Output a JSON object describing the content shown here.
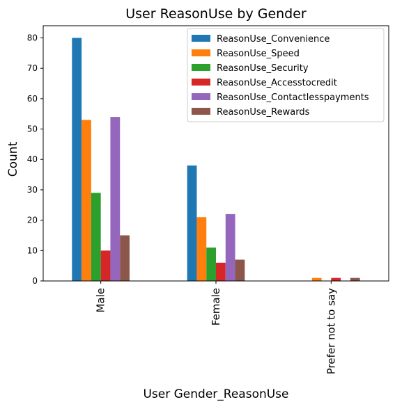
{
  "chart_data": {
    "type": "bar",
    "title": "User ReasonUse by Gender",
    "xlabel": "User Gender_ReasonUse",
    "ylabel": "Count",
    "categories": [
      "Male",
      "Female",
      "Prefer not to say"
    ],
    "ylim": [
      0,
      84
    ],
    "yticks": [
      0,
      10,
      20,
      30,
      40,
      50,
      60,
      70,
      80
    ],
    "grid": false,
    "legend_position": "top-right",
    "series": [
      {
        "name": "ReasonUse_Convenience",
        "color": "#1f77b4",
        "values": [
          80,
          38,
          0
        ]
      },
      {
        "name": "ReasonUse_Speed",
        "color": "#ff7f0e",
        "values": [
          53,
          21,
          1
        ]
      },
      {
        "name": "ReasonUse_Security",
        "color": "#2ca02c",
        "values": [
          29,
          11,
          0
        ]
      },
      {
        "name": "ReasonUse_Accesstocredit",
        "color": "#d62728",
        "values": [
          10,
          6,
          1
        ]
      },
      {
        "name": "ReasonUse_Contactlesspayments",
        "color": "#9467bd",
        "values": [
          54,
          22,
          0
        ]
      },
      {
        "name": "ReasonUse_Rewards",
        "color": "#8c564b",
        "values": [
          15,
          7,
          1
        ]
      }
    ]
  }
}
